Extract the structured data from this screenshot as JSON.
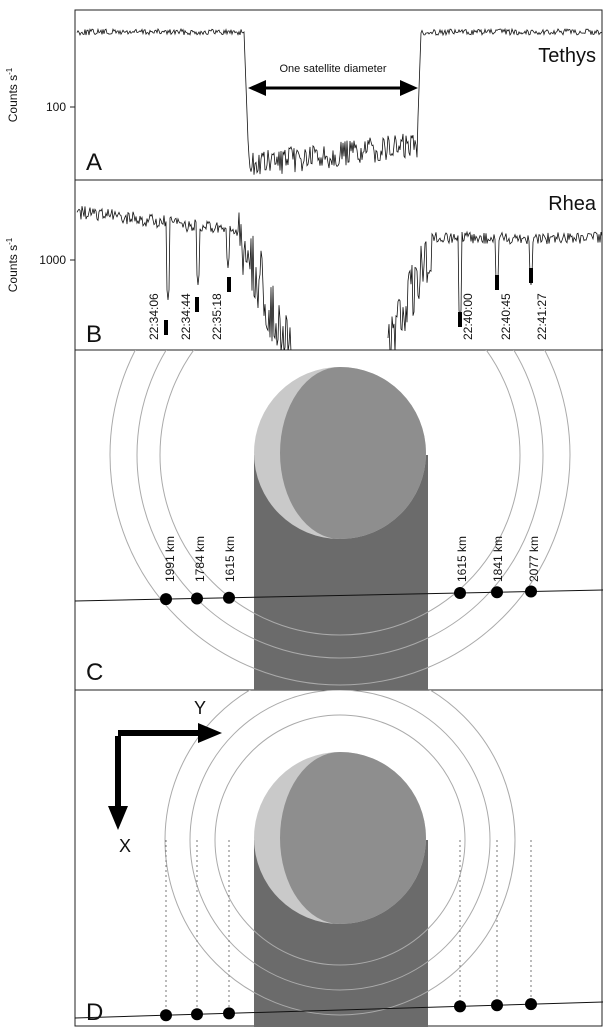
{
  "panels": [
    {
      "letter": "A",
      "target": "Tethys",
      "y_label": "Counts s",
      "y_label_exponent": "-1",
      "tick": "100",
      "annotation": "One satellite diameter"
    },
    {
      "letter": "B",
      "target": "Rhea",
      "y_label": "Counts s",
      "y_label_exponent": "-1",
      "tick": "1000",
      "times": [
        "22:34:06",
        "22:34:44",
        "22:35:18",
        "22:40:00",
        "22:40:45",
        "22:41:27"
      ]
    },
    {
      "letter": "C",
      "distances": [
        "1991 km",
        "1784 km",
        "1615 km",
        "1615 km",
        "1841 km",
        "2077 km"
      ]
    },
    {
      "letter": "D",
      "axis_y": "Y",
      "axis_x": "X"
    }
  ]
}
